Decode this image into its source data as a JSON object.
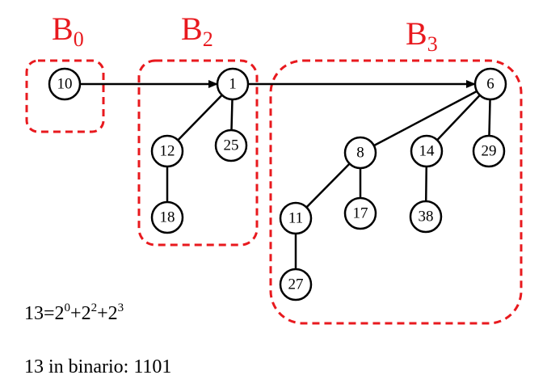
{
  "trees": [
    {
      "id": "b0",
      "label": "B",
      "order": "0",
      "root": "10"
    },
    {
      "id": "b2",
      "label": "B",
      "order": "2",
      "root": "1"
    },
    {
      "id": "b3",
      "label": "B",
      "order": "3",
      "root": "6"
    }
  ],
  "nodes": [
    {
      "id": "n10",
      "key": "10"
    },
    {
      "id": "n1",
      "key": "1"
    },
    {
      "id": "n12",
      "key": "12"
    },
    {
      "id": "n25",
      "key": "25"
    },
    {
      "id": "n18",
      "key": "18"
    },
    {
      "id": "n6",
      "key": "6"
    },
    {
      "id": "n8",
      "key": "8"
    },
    {
      "id": "n14",
      "key": "14"
    },
    {
      "id": "n29",
      "key": "29"
    },
    {
      "id": "n11",
      "key": "11"
    },
    {
      "id": "n17",
      "key": "17"
    },
    {
      "id": "n38",
      "key": "38"
    },
    {
      "id": "n27",
      "key": "27"
    }
  ],
  "edges": [
    {
      "from": "n1",
      "to": "n12"
    },
    {
      "from": "n1",
      "to": "n25"
    },
    {
      "from": "n12",
      "to": "n18"
    },
    {
      "from": "n6",
      "to": "n8"
    },
    {
      "from": "n6",
      "to": "n14"
    },
    {
      "from": "n6",
      "to": "n29"
    },
    {
      "from": "n8",
      "to": "n11"
    },
    {
      "from": "n8",
      "to": "n17"
    },
    {
      "from": "n14",
      "to": "n38"
    },
    {
      "from": "n11",
      "to": "n27"
    }
  ],
  "root_links": [
    {
      "from": "n10",
      "to": "n1"
    },
    {
      "from": "n1",
      "to": "n6"
    }
  ],
  "formula": {
    "lhs": "13=",
    "terms": [
      {
        "base": "2",
        "exp": "0"
      },
      {
        "base": "2",
        "exp": "2"
      },
      {
        "base": "2",
        "exp": "3"
      }
    ],
    "separator": "+"
  },
  "binary_line": "13 in binario: 1101",
  "colors": {
    "group_box": "#e8191e",
    "label": "#e8191e",
    "node_stroke": "#000000",
    "edge": "#000000"
  }
}
